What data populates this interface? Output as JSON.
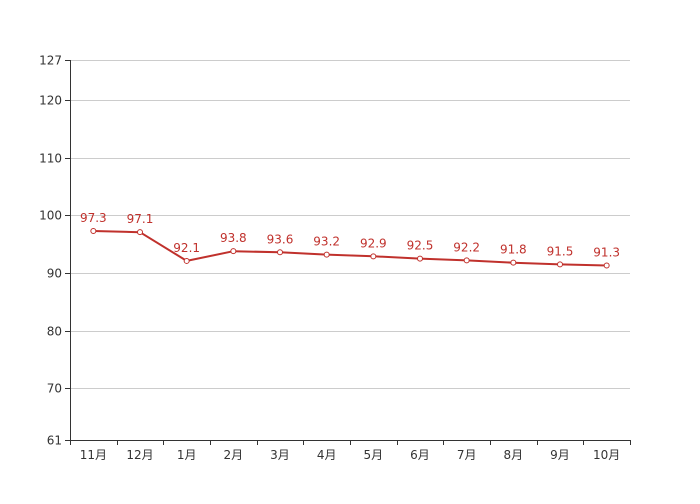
{
  "chart_data": {
    "type": "line",
    "title": "",
    "xlabel": "",
    "ylabel": "",
    "categories": [
      "11月",
      "12月",
      "1月",
      "2月",
      "3月",
      "4月",
      "5月",
      "6月",
      "7月",
      "8月",
      "9月",
      "10月"
    ],
    "series": [
      {
        "values": [
          97.3,
          97.1,
          92.1,
          93.8,
          93.6,
          93.2,
          92.9,
          92.5,
          92.2,
          91.8,
          91.5,
          91.3
        ],
        "color": "#c0312c"
      }
    ],
    "ylim": [
      61,
      127
    ],
    "yticks": [
      61,
      70,
      80,
      90,
      100,
      110,
      120,
      127
    ],
    "grid": true,
    "legend": "none",
    "data_labels": true,
    "marker": "hollow-circle",
    "colors": {
      "grid": "#cccccc",
      "axis": "#333333",
      "tick_text": "#333333"
    }
  }
}
